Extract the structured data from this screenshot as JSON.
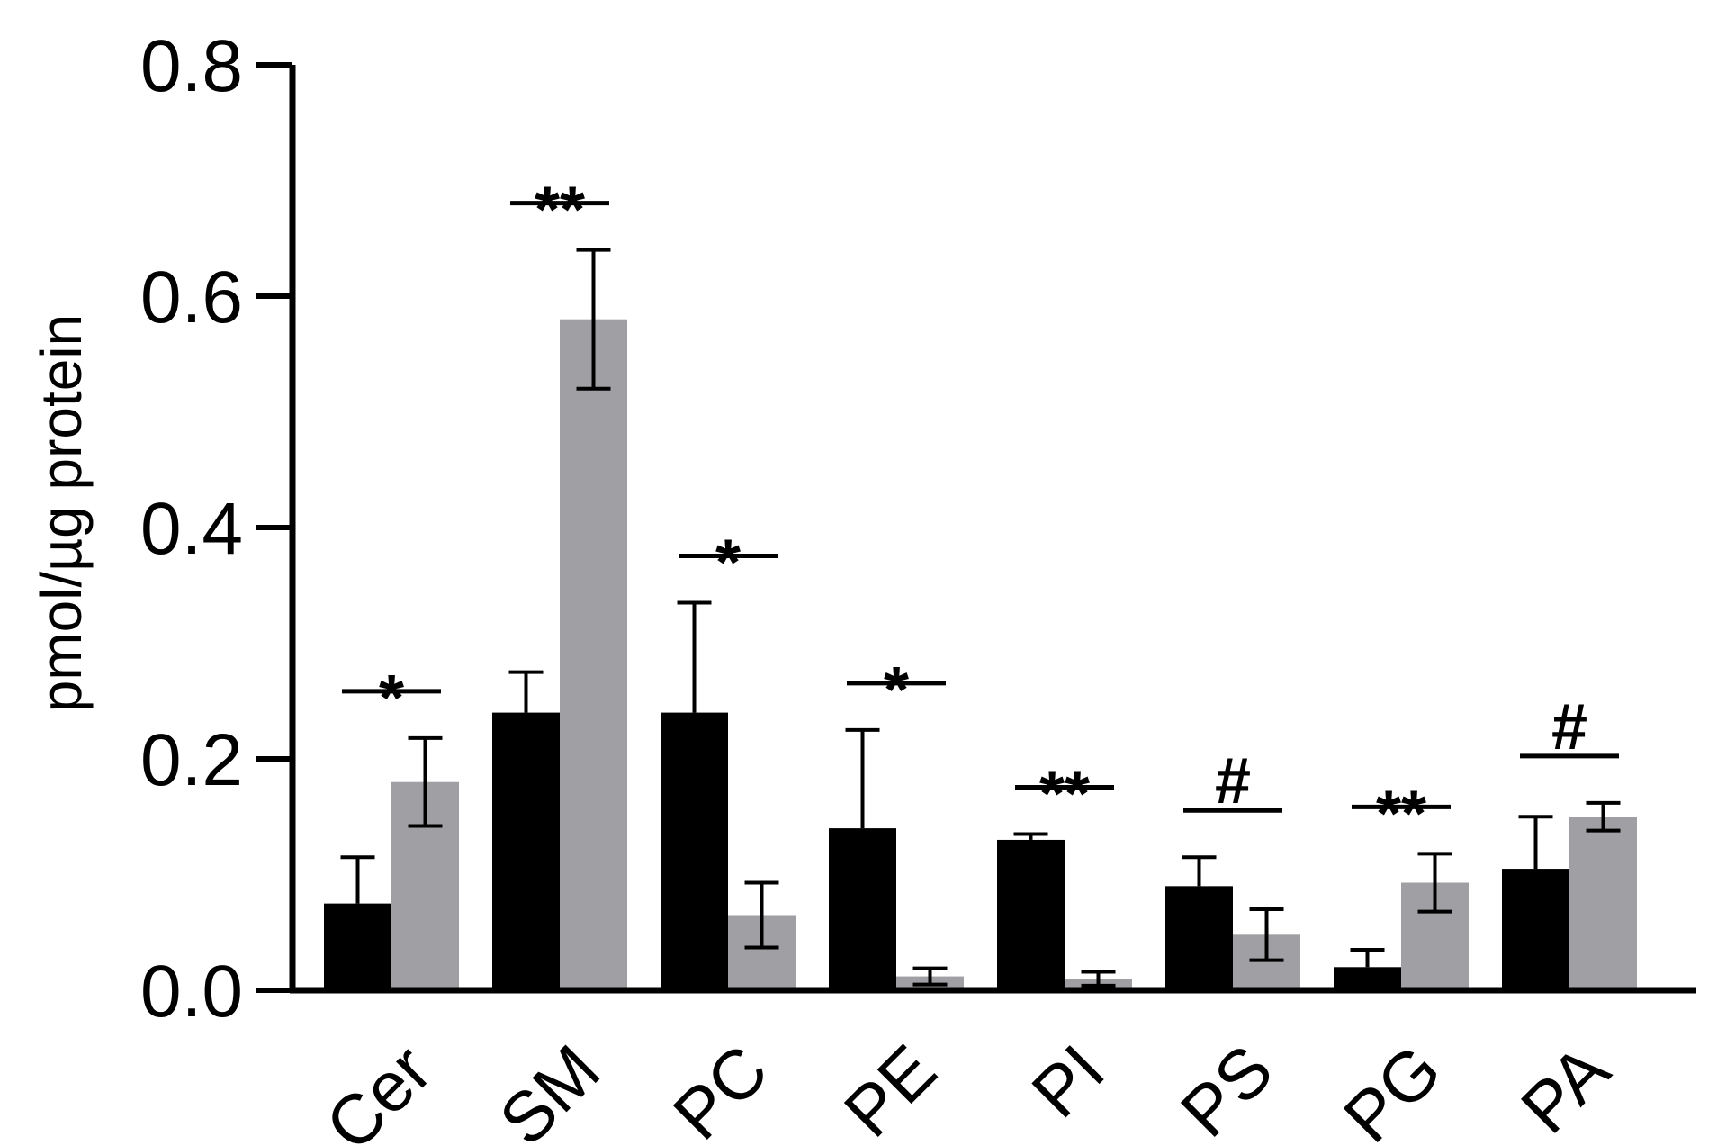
{
  "chart_data": {
    "type": "bar",
    "ylabel": "pmol/µg protein",
    "ylim": [
      0,
      0.8
    ],
    "yticks": [
      "0.0",
      "0.2",
      "0.4",
      "0.6",
      "0.8"
    ],
    "categories": [
      "Cer",
      "SM",
      "PC",
      "PE",
      "PI",
      "PS",
      "PG",
      "PA"
    ],
    "series": [
      {
        "color": "#000000",
        "values": [
          0.075,
          0.24,
          0.24,
          0.14,
          0.13,
          0.09,
          0.02,
          0.105
        ],
        "errors": [
          0.04,
          0.035,
          0.095,
          0.085,
          0.005,
          0.025,
          0.015,
          0.045
        ]
      },
      {
        "color": "#a0a0a4",
        "values": [
          0.18,
          0.58,
          0.065,
          0.012,
          0.01,
          0.048,
          0.093,
          0.15
        ],
        "errors": [
          0.038,
          0.06,
          0.028,
          0.007,
          0.006,
          0.022,
          0.025,
          0.012
        ]
      }
    ],
    "significance": [
      "*",
      "**",
      "*",
      "*",
      "**",
      "#",
      "**",
      "#"
    ],
    "grid": false,
    "legend": "none"
  }
}
